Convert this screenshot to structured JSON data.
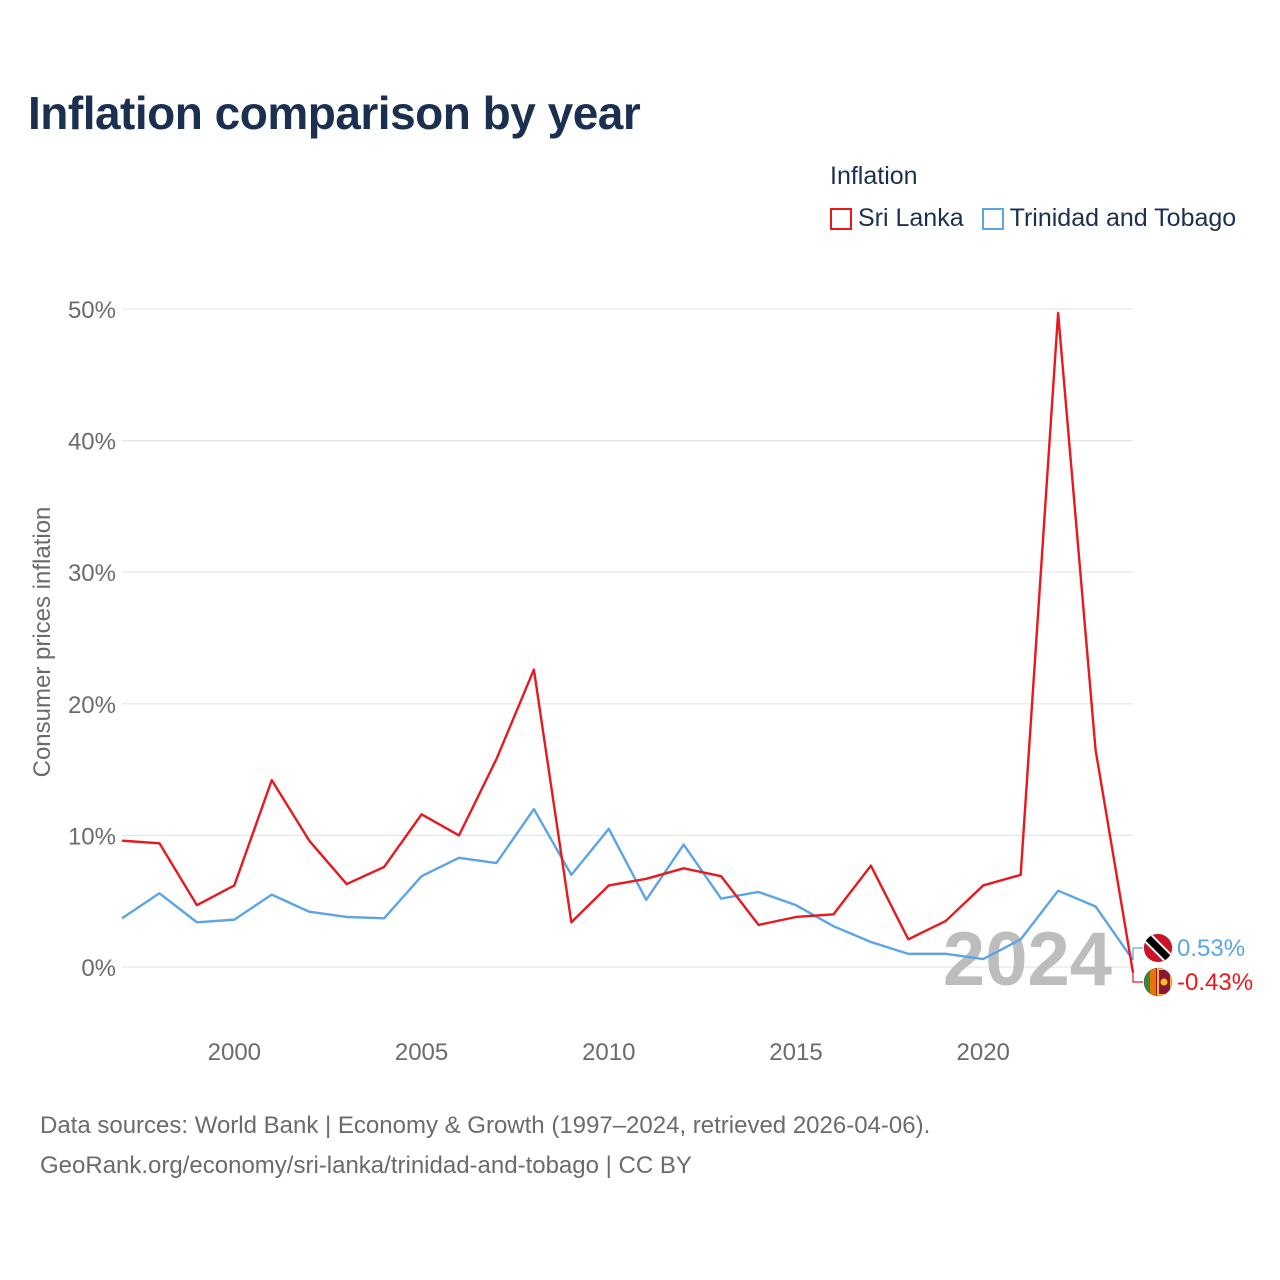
{
  "chart_data": {
    "type": "line",
    "title": "Inflation comparison by year",
    "legend_title": "Inflation",
    "ylabel": "Consumer prices inflation",
    "xlabel": "",
    "x": [
      1997,
      1998,
      1999,
      2000,
      2001,
      2002,
      2003,
      2004,
      2005,
      2006,
      2007,
      2008,
      2009,
      2010,
      2011,
      2012,
      2013,
      2014,
      2015,
      2016,
      2017,
      2018,
      2019,
      2020,
      2021,
      2022,
      2023,
      2024
    ],
    "series": [
      {
        "name": "Sri Lanka",
        "color": "#e8191e",
        "values": [
          9.6,
          9.4,
          4.7,
          6.2,
          14.2,
          9.6,
          6.3,
          7.6,
          11.6,
          10.0,
          15.8,
          22.6,
          3.4,
          6.2,
          6.7,
          7.5,
          6.9,
          3.2,
          3.8,
          4.0,
          7.7,
          2.1,
          3.5,
          6.2,
          7.0,
          49.7,
          16.5,
          -0.43
        ],
        "end_label": "-0.43%"
      },
      {
        "name": "Trinidad and Tobago",
        "color": "#5ba4e6",
        "values": [
          3.7,
          5.6,
          3.4,
          3.6,
          5.5,
          4.2,
          3.8,
          3.7,
          6.9,
          8.3,
          7.9,
          12.0,
          7.0,
          10.5,
          5.1,
          9.3,
          5.2,
          5.7,
          4.7,
          3.1,
          1.9,
          1.0,
          1.0,
          0.6,
          2.1,
          5.8,
          4.6,
          0.53
        ],
        "end_label": "0.53%"
      }
    ],
    "ylim": [
      -4,
      52
    ],
    "yticks": [
      0,
      10,
      20,
      30,
      40,
      50
    ],
    "ytick_labels": [
      "0%",
      "10%",
      "20%",
      "30%",
      "40%",
      "50%"
    ],
    "xlim": [
      1997,
      2024
    ],
    "xticks": [
      2000,
      2005,
      2010,
      2015,
      2020
    ],
    "xtick_labels": [
      "2000",
      "2005",
      "2010",
      "2015",
      "2020"
    ],
    "grid": true,
    "year_watermark": "2024"
  },
  "footer": {
    "line1": "Data sources: World Bank | Economy & Growth (1997–2024, retrieved 2026-04-06).",
    "line2": "GeoRank.org/economy/sri-lanka/trinidad-and-tobago | CC BY"
  },
  "colors": {
    "title": "#1b3050",
    "axis_text": "#6b6b6b",
    "grid": "#e6e6e6",
    "watermark": "#bdbdbd"
  }
}
